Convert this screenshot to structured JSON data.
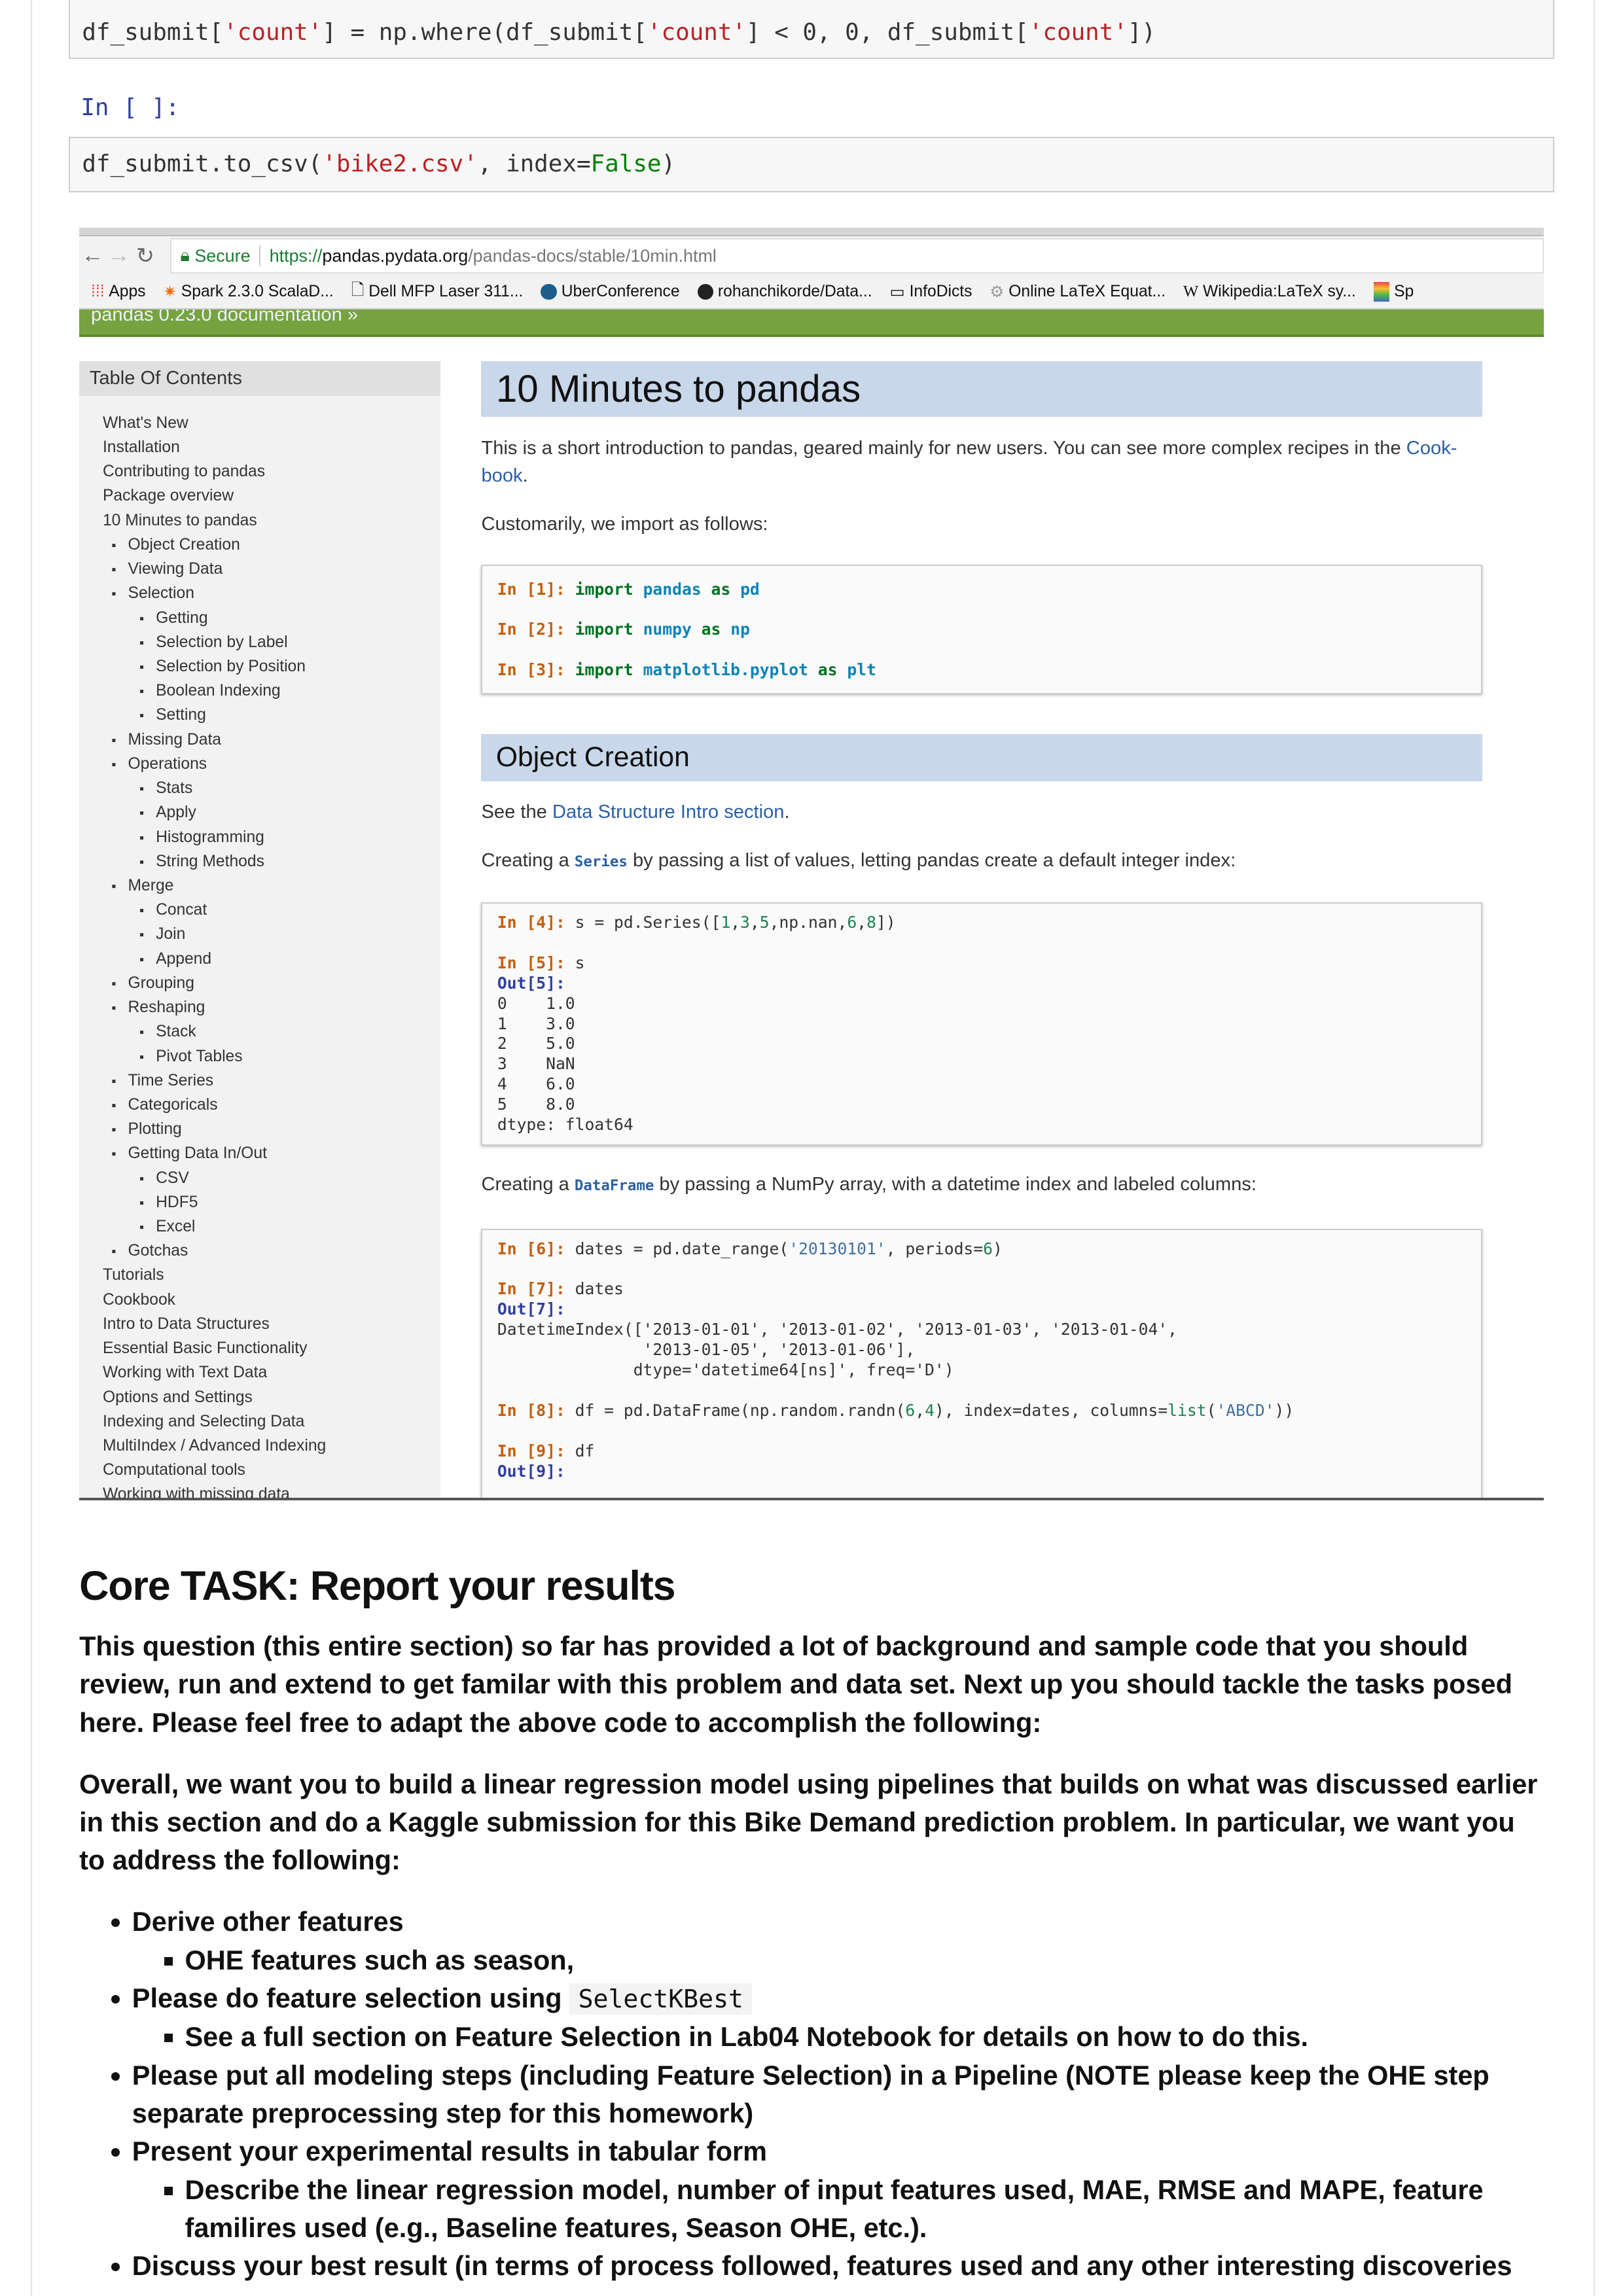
{
  "notebook": {
    "cell1": {
      "a": "df_submit[",
      "s1": "'count'",
      "b": "] = np.where(df_submit[",
      "s2": "'count'",
      "c": "] < 0, 0, df_submit[",
      "s3": "'count'",
      "d": "])"
    },
    "prompt": "In [ ]:",
    "cell2": {
      "a": "df_submit.to_csv(",
      "s": "'bike2.csv'",
      "b": ", index=",
      "k": "False",
      "c": ")"
    }
  },
  "browser": {
    "secure": "Secure",
    "url_scheme": "https://",
    "url_host": "pandas.pydata.org",
    "url_path": "/pandas-docs/stable/10min.html",
    "bookmarks": [
      "Apps",
      "Spark 2.3.0 ScalaD...",
      "Dell MFP Laser 311...",
      "UberConference",
      "rohanchikorde/Data...",
      "InfoDicts",
      "Online LaTeX Equat...",
      "Wikipedia:LaTeX sy...",
      "Sp"
    ],
    "doc_banner": "pandas 0.23.0 documentation »"
  },
  "sidebar": {
    "title": "Table Of Contents",
    "items": [
      {
        "label": "What's New",
        "level": 0
      },
      {
        "label": "Installation",
        "level": 0
      },
      {
        "label": "Contributing to pandas",
        "level": 0
      },
      {
        "label": "Package overview",
        "level": 0
      },
      {
        "label": "10 Minutes to pandas",
        "level": 0
      },
      {
        "label": "Object Creation",
        "level": 1
      },
      {
        "label": "Viewing Data",
        "level": 1
      },
      {
        "label": "Selection",
        "level": 1
      },
      {
        "label": "Getting",
        "level": 2
      },
      {
        "label": "Selection by Label",
        "level": 2
      },
      {
        "label": "Selection by Position",
        "level": 2
      },
      {
        "label": "Boolean Indexing",
        "level": 2
      },
      {
        "label": "Setting",
        "level": 2
      },
      {
        "label": "Missing Data",
        "level": 1
      },
      {
        "label": "Operations",
        "level": 1
      },
      {
        "label": "Stats",
        "level": 2
      },
      {
        "label": "Apply",
        "level": 2
      },
      {
        "label": "Histogramming",
        "level": 2
      },
      {
        "label": "String Methods",
        "level": 2
      },
      {
        "label": "Merge",
        "level": 1
      },
      {
        "label": "Concat",
        "level": 2
      },
      {
        "label": "Join",
        "level": 2
      },
      {
        "label": "Append",
        "level": 2
      },
      {
        "label": "Grouping",
        "level": 1
      },
      {
        "label": "Reshaping",
        "level": 1
      },
      {
        "label": "Stack",
        "level": 2
      },
      {
        "label": "Pivot Tables",
        "level": 2
      },
      {
        "label": "Time Series",
        "level": 1
      },
      {
        "label": "Categoricals",
        "level": 1
      },
      {
        "label": "Plotting",
        "level": 1
      },
      {
        "label": "Getting Data In/Out",
        "level": 1
      },
      {
        "label": "CSV",
        "level": 2
      },
      {
        "label": "HDF5",
        "level": 2
      },
      {
        "label": "Excel",
        "level": 2
      },
      {
        "label": "Gotchas",
        "level": 1
      },
      {
        "label": "Tutorials",
        "level": 0
      },
      {
        "label": "Cookbook",
        "level": 0
      },
      {
        "label": "Intro to Data Structures",
        "level": 0
      },
      {
        "label": "Essential Basic Functionality",
        "level": 0
      },
      {
        "label": "Working with Text Data",
        "level": 0
      },
      {
        "label": "Options and Settings",
        "level": 0
      },
      {
        "label": "Indexing and Selecting Data",
        "level": 0
      },
      {
        "label": "MultiIndex / Advanced Indexing",
        "level": 0
      },
      {
        "label": "Computational tools",
        "level": 0
      },
      {
        "label": "Working with missing data",
        "level": 0
      }
    ]
  },
  "doc": {
    "title": "10 Minutes to pandas",
    "intro": "This is a short introduction to pandas, geared mainly for new users. You can see more complex recipes in the ",
    "intro_link": "Cook-book",
    "intro_end": ".",
    "import_text": "Customarily, we import as follows:",
    "section": "Object Creation",
    "see_pre": "See the ",
    "see_link": "Data Structure Intro section",
    "see_end": ".",
    "series_pre": "Creating a ",
    "series_lit": "Series",
    "series_post": " by passing a list of values, letting pandas create a default integer index:",
    "df_pre": "Creating a ",
    "df_lit": "DataFrame",
    "df_post": " by passing a NumPy array, with a datetime index and labeled columns:",
    "series_output": "0    1.0\n1    3.0\n2    5.0\n3    NaN\n4    6.0\n5    8.0\ndtype: float64",
    "dates_output": "DatetimeIndex(['2013-01-01', '2013-01-02', '2013-01-03', '2013-01-04',\n               '2013-01-05', '2013-01-06'],\n              dtype='datetime64[ns]', freq='D')"
  },
  "task": {
    "heading": "Core TASK: Report your results",
    "p1": "This question (this entire section) so far has provided a lot of background and sample code that you should review, run and extend to get familar with this problem and data set. Next up you should tackle the tasks posed here. Please feel free to adapt the above code to accomplish the following:",
    "p2": "Overall, we want you to build a linear regression model using pipelines that builds on what was discussed earlier in this section and do a Kaggle submission for this Bike Demand prediction problem. In particular, we want you to address the following:",
    "b1": "Derive other features",
    "b1a": "OHE features such as season,",
    "b2": "Please do feature selection using ",
    "b2_code": "SelectKBest",
    "b2a": "See a full section on Feature Selection in Lab04 Notebook for details on how to do this.",
    "b3": "Please put all modeling steps (including Feature Selection) in a Pipeline ",
    "b3_note": "(NOTE please keep the OHE step separate preprocessing step for this homework)",
    "b4": "Present your experimental results in tabular form",
    "b4a": "Describe the linear regression model, number of input features used, MAE, RMSE and MAPE, feature familires used (e.g., Baseline features, Season OHE, etc.).",
    "b5": "Discuss your best result (in terms of process followed, features used and any other interesting discoveries"
  }
}
